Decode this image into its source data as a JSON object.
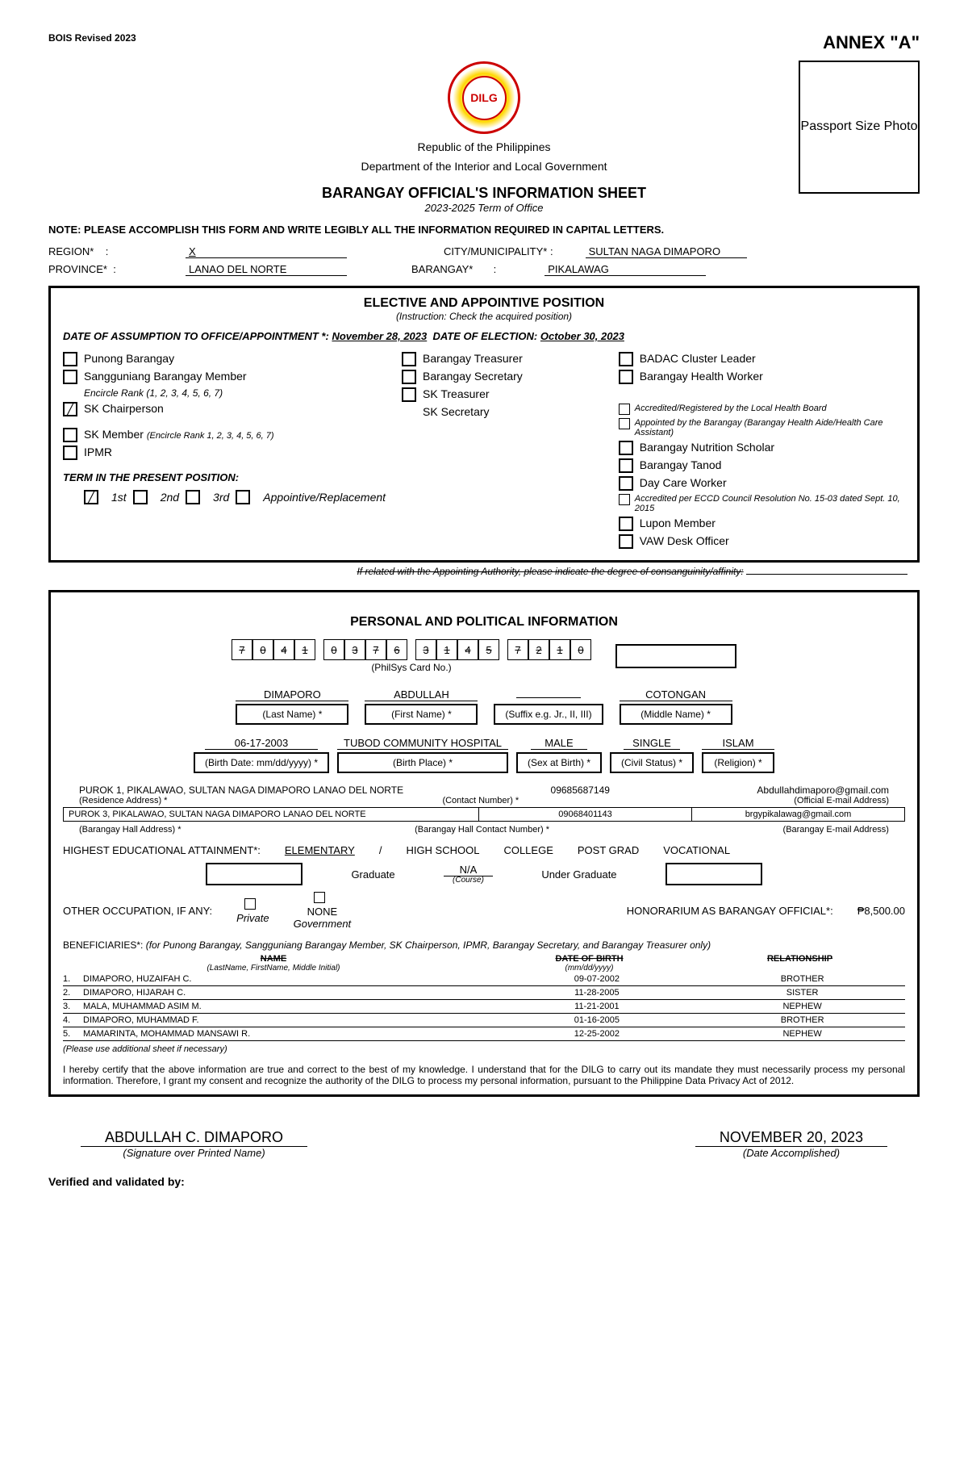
{
  "header": {
    "revised": "BOIS Revised 2023",
    "annex": "ANNEX \"A\"",
    "logo_text": "DILG",
    "republic": "Republic of the Philippines",
    "department": "Department of the Interior and Local Government",
    "photo_label": "Passport Size Photo",
    "form_title": "BARANGAY OFFICIAL'S INFORMATION SHEET",
    "term": "2023-2025 Term of Office",
    "note": "NOTE: PLEASE ACCOMPLISH THIS FORM AND WRITE LEGIBLY ALL THE INFORMATION REQUIRED IN CAPITAL LETTERS."
  },
  "location": {
    "region_label": "REGION*",
    "region": "X",
    "province_label": "PROVINCE*",
    "province": "LANAO DEL NORTE",
    "city_label": "CITY/MUNICIPALITY* :",
    "city": "SULTAN NAGA DIMAPORO",
    "barangay_label": "BARANGAY*",
    "barangay": "PIKALAWAG"
  },
  "elective": {
    "title": "ELECTIVE AND APPOINTIVE POSITION",
    "instruction": "(Instruction: Check the acquired position)",
    "assumption_label": "DATE OF ASSUMPTION TO OFFICE/APPOINTMENT *:",
    "assumption_date": "November 28, 2023",
    "election_label": "DATE OF ELECTION:",
    "election_date": "October 30, 2023",
    "positions": {
      "punong": "Punong Barangay",
      "sanggunian": "Sangguniang Barangay Member",
      "encircle1": "Encircle Rank (1, 2, 3, 4, 5, 6, 7)",
      "sk_chair": "SK Chairperson",
      "sk_member": "SK Member",
      "sk_member_note": "(Encircle Rank 1, 2, 3, 4, 5, 6, 7)",
      "ipmr": "IPMR",
      "treasurer": "Barangay Treasurer",
      "secretary": "Barangay Secretary",
      "sk_treasurer": "SK Treasurer",
      "sk_secretary": "SK Secretary",
      "badac": "BADAC Cluster Leader",
      "bhw": "Barangay Health Worker",
      "accredited_lhb": "Accredited/Registered by the Local Health Board",
      "appointed_brgy": "Appointed by the Barangay (Barangay Health Aide/Health Care Assistant)",
      "bns": "Barangay Nutrition Scholar",
      "tanod": "Barangay Tanod",
      "daycare": "Day Care Worker",
      "eccd": "Accredited per ECCD Council Resolution No. 15-03 dated Sept. 10, 2015",
      "lupon": "Lupon Member",
      "vaw": "VAW Desk Officer"
    },
    "term_label": "TERM IN THE PRESENT POSITION:",
    "term_1st": "1st",
    "term_2nd": "2nd",
    "term_3rd": "3rd",
    "term_appointive": "Appointive/Replacement",
    "consang_note": "If related with the Appointing Authority, please indicate the degree of consanguinity/affinity:"
  },
  "personal": {
    "title": "PERSONAL AND POLITICAL INFORMATION",
    "philsys": [
      "7",
      "0",
      "4",
      "1",
      "",
      "0",
      "3",
      "7",
      "6",
      "",
      "3",
      "1",
      "4",
      "5",
      "",
      "7",
      "2",
      "1",
      "0"
    ],
    "philsys_label": "(PhilSys Card No.)",
    "last_name": "DIMAPORO",
    "first_name": "ABDULLAH",
    "suffix": "",
    "middle_name": "COTONGAN",
    "last_name_label": "(Last Name) *",
    "first_name_label": "(First Name) *",
    "suffix_label": "(Suffix e.g. Jr., II, III)",
    "middle_name_label": "(Middle Name) *",
    "birth_date": "06-17-2003",
    "birth_place": "TUBOD COMMUNITY HOSPITAL",
    "sex": "MALE",
    "civil_status": "SINGLE",
    "religion": "ISLAM",
    "birth_date_label": "(Birth Date: mm/dd/yyyy) *",
    "birth_place_label": "(Birth Place) *",
    "sex_label": "(Sex at Birth) *",
    "civil_label": "(Civil Status) *",
    "religion_label": "(Religion) *",
    "residence": "PUROK 1, PIKALAWAO, SULTAN NAGA DIMAPORO LANAO DEL NORTE",
    "contact": "09685687149",
    "email": "Abdullahdimaporo@gmail.com",
    "residence_label": "(Residence Address) *",
    "contact_label": "(Contact Number) *",
    "email_label": "(Official E-mail Address)",
    "brgy_hall": "PUROK 3, PIKALAWAO, SULTAN NAGA DIMAPORO LANAO DEL NORTE",
    "brgy_contact": "09068401143",
    "brgy_email": "brgypikalawag@gmail.com",
    "brgy_hall_label": "(Barangay Hall Address) *",
    "brgy_contact_label": "(Barangay Hall Contact Number) *",
    "brgy_email_label": "(Barangay E-mail Address)",
    "edu_label": "HIGHEST EDUCATIONAL ATTAINMENT*:",
    "edu_elem": "ELEMENTARY",
    "edu_hs": "HIGH SCHOOL",
    "edu_college": "COLLEGE",
    "edu_postgrad": "POST GRAD",
    "edu_voc": "VOCATIONAL",
    "graduate": "Graduate",
    "course": "N/A",
    "course_label": "(Course)",
    "undergrad": "Under Graduate",
    "occ_label": "OTHER OCCUPATION, IF ANY:",
    "occ_none": "NONE",
    "occ_private": "Private",
    "occ_govt": "Government",
    "honorarium_label": "HONORARIUM AS BARANGAY OFFICIAL*:",
    "honorarium": "₱8,500.00",
    "benef_label": "BENEFICIARIES*:",
    "benef_note": "(for Punong Barangay, Sangguniang Barangay Member, SK Chairperson, IPMR, Barangay Secretary, and Barangay Treasurer only)",
    "benef_name_header": "NAME",
    "benef_name_sub": "(LastName, FirstName, Middle Initial)",
    "benef_dob_header": "DATE OF BIRTH",
    "benef_dob_sub": "(mm/dd/yyyy)",
    "benef_rel_header": "RELATIONSHIP",
    "beneficiaries": [
      {
        "n": "1.",
        "name": "DIMAPORO, HUZAIFAH C.",
        "dob": "09-07-2002",
        "rel": "BROTHER"
      },
      {
        "n": "2.",
        "name": "DIMAPORO, HIJARAH C.",
        "dob": "11-28-2005",
        "rel": "SISTER"
      },
      {
        "n": "3.",
        "name": "MALA, MUHAMMAD ASIM M.",
        "dob": "11-21-2001",
        "rel": "NEPHEW"
      },
      {
        "n": "4.",
        "name": "DIMAPORO, MUHAMMAD F.",
        "dob": "01-16-2005",
        "rel": "BROTHER"
      },
      {
        "n": "5.",
        "name": "MAMARINTA, MOHAMMAD MANSAWI R.",
        "dob": "12-25-2002",
        "rel": "NEPHEW"
      }
    ],
    "additional_sheet": "(Please use additional sheet if necessary)",
    "certify": "I hereby certify that the above information are true and correct to the best of my knowledge. I understand that for the DILG to carry out its mandate they must necessarily process my personal information. Therefore, I grant my consent and recognize the authority of the DILG to process my personal information, pursuant to the Philippine Data Privacy Act of 2012."
  },
  "signature": {
    "name": "ABDULLAH C. DIMAPORO",
    "name_label": "(Signature over Printed Name)",
    "date": "NOVEMBER 20, 2023",
    "date_label": "(Date Accomplished)",
    "verified": "Verified and validated by:"
  }
}
